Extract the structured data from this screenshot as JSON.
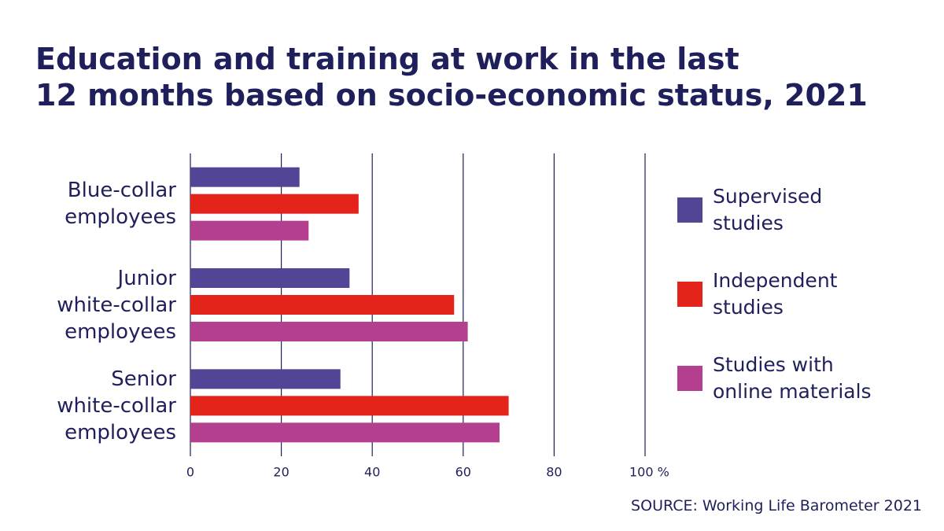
{
  "chart_data": {
    "type": "bar",
    "orientation": "horizontal",
    "title": "Education and training at work in the last\n12 months based on socio-economic status, 2021",
    "categories": [
      "Blue-collar\nemployees",
      "Junior\nwhite-collar\nemployees",
      "Senior\nwhite-collar\nemployees"
    ],
    "series": [
      {
        "name": "Supervised\nstudies",
        "color": "#524595",
        "values": [
          24,
          35,
          33
        ]
      },
      {
        "name": "Independent\nstudies",
        "color": "#e4231b",
        "values": [
          37,
          58,
          70
        ]
      },
      {
        "name": "Studies with\nonline materials",
        "color": "#b43f8f",
        "values": [
          26,
          61,
          68
        ]
      }
    ],
    "xlim": [
      0,
      100
    ],
    "xticks": [
      0,
      20,
      40,
      60,
      80,
      {
        "value": 100,
        "label": "100 %"
      }
    ],
    "grid": true,
    "legend": "right",
    "source": "SOURCE: Working Life Barometer 2021"
  }
}
